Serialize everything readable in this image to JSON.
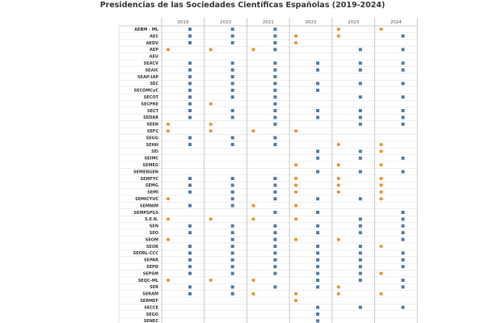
{
  "chart_data": {
    "type": "scatter",
    "title": "Presidencias de las Sociedades Científicas Españolas (2019-2024)",
    "years": [
      "2019",
      "2020",
      "2021",
      "2022",
      "2023",
      "2024"
    ],
    "encoding": {
      "F": "orange circle (left)",
      "M": "blue square (right)"
    },
    "colors": {
      "F": "#f28e2b",
      "M": "#4e79a7"
    },
    "rows": [
      {
        "name": "AEBM - ML",
        "values": [
          "M",
          "M",
          "M",
          "",
          "F",
          "F"
        ]
      },
      {
        "name": "AEC",
        "values": [
          "M",
          "M",
          "M",
          "F",
          "F",
          "M"
        ]
      },
      {
        "name": "AEDV",
        "values": [
          "M",
          "M",
          "M",
          "F",
          "",
          ""
        ]
      },
      {
        "name": "AEP",
        "values": [
          "F",
          "F",
          "FM",
          "",
          "M",
          "M"
        ]
      },
      {
        "name": "AEU",
        "values": [
          "",
          "",
          "",
          "",
          "",
          ""
        ]
      },
      {
        "name": "SEACV",
        "values": [
          "M",
          "M",
          "M",
          "M",
          "M",
          "M"
        ]
      },
      {
        "name": "SEAIC",
        "values": [
          "M",
          "M",
          "M",
          "M",
          "M",
          "M"
        ]
      },
      {
        "name": "SEAP-IAP",
        "values": [
          "M",
          "M",
          "M",
          "",
          "",
          ""
        ]
      },
      {
        "name": "SEC",
        "values": [
          "M",
          "M",
          "M",
          "M",
          "M",
          "M"
        ]
      },
      {
        "name": "SECOMCyC",
        "values": [
          "M",
          "M",
          "M",
          "M",
          "",
          ""
        ]
      },
      {
        "name": "SECOT",
        "values": [
          "M",
          "M",
          "M",
          "",
          "M",
          "M"
        ]
      },
      {
        "name": "SECPRE",
        "values": [
          "M",
          "F",
          "M",
          "",
          "",
          ""
        ]
      },
      {
        "name": "SECT",
        "values": [
          "M",
          "M",
          "M",
          "M",
          "M",
          "M"
        ]
      },
      {
        "name": "SEDAR",
        "values": [
          "M",
          "M",
          "M",
          "M",
          "M",
          "M"
        ]
      },
      {
        "name": "SEEN",
        "values": [
          "F",
          "F",
          "M",
          "",
          "M",
          "M"
        ]
      },
      {
        "name": "SEFC",
        "values": [
          "F",
          "F",
          "F",
          "F",
          "",
          ""
        ]
      },
      {
        "name": "SEGG",
        "values": [
          "M",
          "M",
          "M",
          "",
          "",
          ""
        ]
      },
      {
        "name": "SEHH",
        "values": [
          "M",
          "M",
          "M",
          "",
          "F",
          "F"
        ]
      },
      {
        "name": "SEI",
        "values": [
          "",
          "",
          "",
          "M",
          "M",
          "F"
        ]
      },
      {
        "name": "SEIMC",
        "values": [
          "",
          "",
          "",
          "M",
          "M",
          "M"
        ]
      },
      {
        "name": "SEMEG",
        "values": [
          "",
          "",
          "",
          "F",
          "F",
          "F"
        ]
      },
      {
        "name": "SEMERGEN",
        "values": [
          "",
          "",
          "",
          "M",
          "M",
          "M"
        ]
      },
      {
        "name": "SEMFYC",
        "values": [
          "M",
          "M",
          "M",
          "F",
          "F",
          "F"
        ]
      },
      {
        "name": "SEMG",
        "values": [
          "M",
          "M",
          "M",
          "F",
          "F",
          "F"
        ]
      },
      {
        "name": "SEMI",
        "values": [
          "M",
          "M",
          "M",
          "F",
          "F",
          "F"
        ]
      },
      {
        "name": "SEMICYUC",
        "values": [
          "F",
          "M",
          "M",
          "M",
          "M",
          "F"
        ]
      },
      {
        "name": "SEMNIM",
        "values": [
          "M",
          "M",
          "F",
          "F",
          "",
          ""
        ]
      },
      {
        "name": "SEMPSPGS",
        "values": [
          "",
          "",
          "M",
          "M",
          "",
          "M"
        ]
      },
      {
        "name": "S.E.N.",
        "values": [
          "F",
          "F",
          "F",
          "F",
          "M",
          "M"
        ]
      },
      {
        "name": "SEN",
        "values": [
          "M",
          "M",
          "M",
          "M",
          "M",
          "M"
        ]
      },
      {
        "name": "SEO",
        "values": [
          "M",
          "M",
          "M",
          "M",
          "M",
          "M"
        ]
      },
      {
        "name": "SEOM",
        "values": [
          "F",
          "M",
          "M",
          "F",
          "F",
          "M"
        ]
      },
      {
        "name": "SEOR",
        "values": [
          "M",
          "M",
          "M",
          "M",
          "M",
          "F"
        ]
      },
      {
        "name": "SEORL-CCC",
        "values": [
          "M",
          "M",
          "M",
          "M",
          "M",
          "M"
        ]
      },
      {
        "name": "SEPAR",
        "values": [
          "M",
          "M",
          "M",
          "M",
          "M",
          "M"
        ]
      },
      {
        "name": "SEPD",
        "values": [
          "M",
          "M",
          "M",
          "M",
          "M",
          "M"
        ]
      },
      {
        "name": "SEPSM",
        "values": [
          "M",
          "M",
          "M",
          "M",
          "M",
          "F"
        ]
      },
      {
        "name": "SEQC-ML",
        "values": [
          "F",
          "F",
          "F",
          "M",
          "M",
          "M"
        ]
      },
      {
        "name": "SER",
        "values": [
          "M",
          "M",
          "M",
          "M",
          "F",
          "M"
        ]
      },
      {
        "name": "SERAM",
        "values": [
          "M",
          "M",
          "F",
          "F",
          "F",
          "F"
        ]
      },
      {
        "name": "SERMEF",
        "values": [
          "",
          "",
          "",
          "F",
          "",
          ""
        ]
      },
      {
        "name": "SECCE",
        "values": [
          "",
          "",
          "",
          "M",
          "M",
          "M"
        ]
      },
      {
        "name": "SEGO",
        "values": [
          "",
          "",
          "",
          "M",
          "",
          ""
        ]
      },
      {
        "name": "SENEC",
        "values": [
          "",
          "",
          "",
          "M",
          "",
          ""
        ]
      }
    ]
  }
}
